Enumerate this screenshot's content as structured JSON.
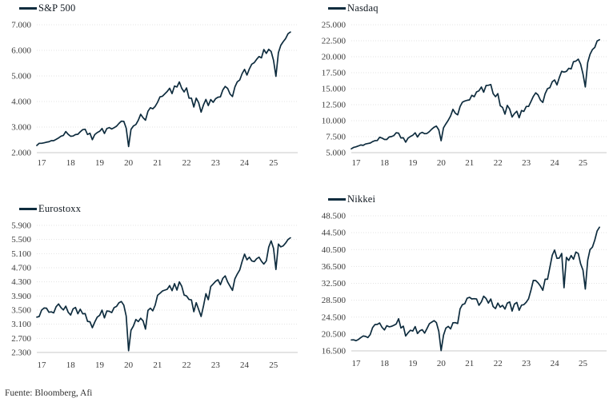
{
  "footer": {
    "source_label": "Fuente: Bloomberg, Afi"
  },
  "colors": {
    "line": "#0e2c3e",
    "grid": "#e3e3e3",
    "axis": "#c9c9c9",
    "tick_text": "#3b3b3b",
    "background": "#ffffff"
  },
  "chart_data": [
    {
      "type": "line",
      "title": "S&P 500",
      "legend_position": "top-left",
      "grid": true,
      "x_start": "2017-01",
      "frequency": "monthly",
      "axis_months": 108,
      "xticks": [
        "17",
        "18",
        "19",
        "20",
        "21",
        "22",
        "23",
        "24",
        "25"
      ],
      "ylim": [
        2000,
        7000
      ],
      "yticks": [
        {
          "value": 7000,
          "label": "7.000"
        },
        {
          "value": 6000,
          "label": "6.000"
        },
        {
          "value": 5000,
          "label": "5.000"
        },
        {
          "value": 4000,
          "label": "4.000"
        },
        {
          "value": 3000,
          "label": "3.000"
        },
        {
          "value": 2000,
          "label": "2.000"
        }
      ],
      "series": [
        {
          "name": "S&P 500",
          "values": [
            2280,
            2365,
            2365,
            2385,
            2410,
            2425,
            2470,
            2470,
            2520,
            2575,
            2645,
            2675,
            2825,
            2715,
            2640,
            2650,
            2705,
            2720,
            2815,
            2900,
            2915,
            2710,
            2760,
            2505,
            2705,
            2785,
            2835,
            2945,
            2750,
            2940,
            2980,
            2925,
            2975,
            3035,
            3140,
            3230,
            3225,
            2955,
            2237,
            2910,
            3045,
            3100,
            3270,
            3500,
            3365,
            3270,
            3620,
            3755,
            3715,
            3810,
            3970,
            4180,
            4205,
            4300,
            4395,
            4520,
            4310,
            4605,
            4565,
            4765,
            4515,
            4375,
            4530,
            4130,
            4130,
            3785,
            4130,
            3955,
            3585,
            3870,
            4080,
            3840,
            4075,
            3970,
            4110,
            4170,
            4180,
            4450,
            4590,
            4510,
            4290,
            4195,
            4565,
            4770,
            4845,
            5095,
            5255,
            5035,
            5275,
            5460,
            5520,
            5650,
            5760,
            5705,
            6030,
            5880,
            6040,
            5955,
            5610,
            4985,
            5910,
            6200,
            6340,
            6460,
            6650,
            6715
          ]
        }
      ]
    },
    {
      "type": "line",
      "title": "Nasdaq",
      "legend_position": "top-left",
      "grid": true,
      "x_start": "2017-01",
      "frequency": "monthly",
      "axis_months": 108,
      "xticks": [
        "17",
        "18",
        "19",
        "20",
        "21",
        "22",
        "23",
        "24",
        "25"
      ],
      "ylim": [
        5000,
        25000
      ],
      "yticks": [
        {
          "value": 25000,
          "label": "25.000"
        },
        {
          "value": 22500,
          "label": "22.500"
        },
        {
          "value": 20000,
          "label": "20.000"
        },
        {
          "value": 17500,
          "label": "17.500"
        },
        {
          "value": 15000,
          "label": "15.000"
        },
        {
          "value": 12500,
          "label": "12.500"
        },
        {
          "value": 10000,
          "label": "10.000"
        },
        {
          "value": 7500,
          "label": "7.500"
        },
        {
          "value": 5000,
          "label": "5.000"
        }
      ],
      "series": [
        {
          "name": "Nasdaq",
          "values": [
            5600,
            5825,
            5910,
            6050,
            6200,
            6140,
            6350,
            6430,
            6495,
            6730,
            6875,
            6900,
            7410,
            7270,
            7065,
            7065,
            7445,
            7510,
            7670,
            8110,
            8045,
            7305,
            7330,
            6635,
            7280,
            7530,
            7730,
            8095,
            7455,
            8000,
            8175,
            7965,
            7995,
            8290,
            8665,
            8970,
            9150,
            8565,
            6860,
            8890,
            9490,
            10060,
            10745,
            11775,
            11165,
            10910,
            12200,
            12890,
            13070,
            13190,
            13245,
            13960,
            13750,
            14500,
            14670,
            15260,
            14450,
            15500,
            15540,
            15645,
            14240,
            13750,
            14220,
            12335,
            12080,
            11030,
            12390,
            11815,
            10575,
            11100,
            11470,
            10465,
            11585,
            11455,
            12220,
            12225,
            13000,
            13790,
            14345,
            14035,
            13220,
            12850,
            14225,
            15010,
            15165,
            16090,
            16380,
            15605,
            16735,
            17730,
            17600,
            17715,
            18190,
            18095,
            19220,
            19310,
            19625,
            18845,
            17300,
            15270,
            19115,
            20370,
            21120,
            21455,
            22480,
            22660
          ]
        }
      ]
    },
    {
      "type": "line",
      "title": "Eurostoxx",
      "legend_position": "top-left",
      "grid": true,
      "x_start": "2017-01",
      "frequency": "monthly",
      "axis_months": 108,
      "xticks": [
        "17",
        "18",
        "19",
        "20",
        "21",
        "22",
        "23",
        "24",
        "25"
      ],
      "ylim": [
        2300,
        5900
      ],
      "yticks": [
        {
          "value": 5900,
          "label": "5.900"
        },
        {
          "value": 5500,
          "label": "5.500"
        },
        {
          "value": 5100,
          "label": "5.100"
        },
        {
          "value": 4700,
          "label": "4.700"
        },
        {
          "value": 4300,
          "label": "4.300"
        },
        {
          "value": 3900,
          "label": "3.900"
        },
        {
          "value": 3500,
          "label": "3.500"
        },
        {
          "value": 3100,
          "label": "3.100"
        },
        {
          "value": 2700,
          "label": "2.700"
        },
        {
          "value": 2300,
          "label": "2.300"
        }
      ],
      "series": [
        {
          "name": "Eurostoxx",
          "values": [
            3300,
            3320,
            3500,
            3560,
            3555,
            3440,
            3450,
            3420,
            3595,
            3675,
            3570,
            3505,
            3610,
            3440,
            3360,
            3535,
            3575,
            3395,
            3525,
            3395,
            3400,
            3180,
            3170,
            3000,
            3160,
            3300,
            3350,
            3500,
            3280,
            3475,
            3465,
            3430,
            3570,
            3605,
            3705,
            3745,
            3640,
            3330,
            2350,
            2930,
            3050,
            3235,
            3175,
            3270,
            3195,
            2960,
            3490,
            3555,
            3480,
            3640,
            3920,
            3975,
            4040,
            4065,
            4090,
            4195,
            4050,
            4250,
            4065,
            4300,
            4175,
            3925,
            3900,
            3800,
            3790,
            3455,
            3710,
            3520,
            3320,
            3620,
            3965,
            3795,
            4165,
            4240,
            4315,
            4360,
            4220,
            4400,
            4470,
            4295,
            4175,
            4060,
            4385,
            4520,
            4640,
            4880,
            5085,
            4925,
            5000,
            4895,
            4875,
            4955,
            5000,
            4885,
            4805,
            4895,
            5285,
            5460,
            5250,
            4650,
            5370,
            5290,
            5320,
            5400,
            5500,
            5550
          ]
        }
      ]
    },
    {
      "type": "line",
      "title": "Nikkei",
      "legend_position": "top-left",
      "grid": true,
      "x_start": "2017-01",
      "frequency": "monthly",
      "axis_months": 108,
      "xticks": [
        "17",
        "18",
        "19",
        "20",
        "21",
        "22",
        "23",
        "24",
        "25"
      ],
      "ylim": [
        16500,
        48500
      ],
      "yticks": [
        {
          "value": 48500,
          "label": "48.500"
        },
        {
          "value": 44500,
          "label": "44.500"
        },
        {
          "value": 40500,
          "label": "40.500"
        },
        {
          "value": 36500,
          "label": "36.500"
        },
        {
          "value": 32500,
          "label": "32.500"
        },
        {
          "value": 28500,
          "label": "28.500"
        },
        {
          "value": 24500,
          "label": "24.500"
        },
        {
          "value": 20500,
          "label": "20.500"
        },
        {
          "value": 16500,
          "label": "16.500"
        }
      ],
      "series": [
        {
          "name": "Nikkei",
          "values": [
            19100,
            19120,
            18910,
            19200,
            19650,
            20030,
            19925,
            19645,
            20355,
            22010,
            22725,
            22765,
            23100,
            22070,
            21455,
            22470,
            22200,
            22305,
            22555,
            22865,
            24120,
            21920,
            22350,
            20015,
            20775,
            21385,
            21205,
            22260,
            20600,
            21275,
            21520,
            20705,
            21755,
            22925,
            23295,
            23655,
            23205,
            21145,
            16555,
            20195,
            21880,
            22290,
            21710,
            23140,
            23185,
            22975,
            26435,
            27445,
            27665,
            28965,
            29180,
            28815,
            28860,
            28790,
            27285,
            28090,
            29455,
            28895,
            27820,
            28790,
            27000,
            26525,
            27820,
            26850,
            27280,
            26395,
            27800,
            28090,
            25935,
            27585,
            27970,
            26095,
            27325,
            27445,
            28040,
            28855,
            30890,
            33190,
            33170,
            32620,
            31860,
            30860,
            33485,
            33465,
            36285,
            39165,
            40370,
            38405,
            38490,
            39585,
            31460,
            38650,
            37920,
            39080,
            38210,
            39895,
            39570,
            37155,
            35620,
            31140,
            37965,
            40490,
            41070,
            42720,
            44930,
            45800
          ]
        }
      ]
    }
  ]
}
